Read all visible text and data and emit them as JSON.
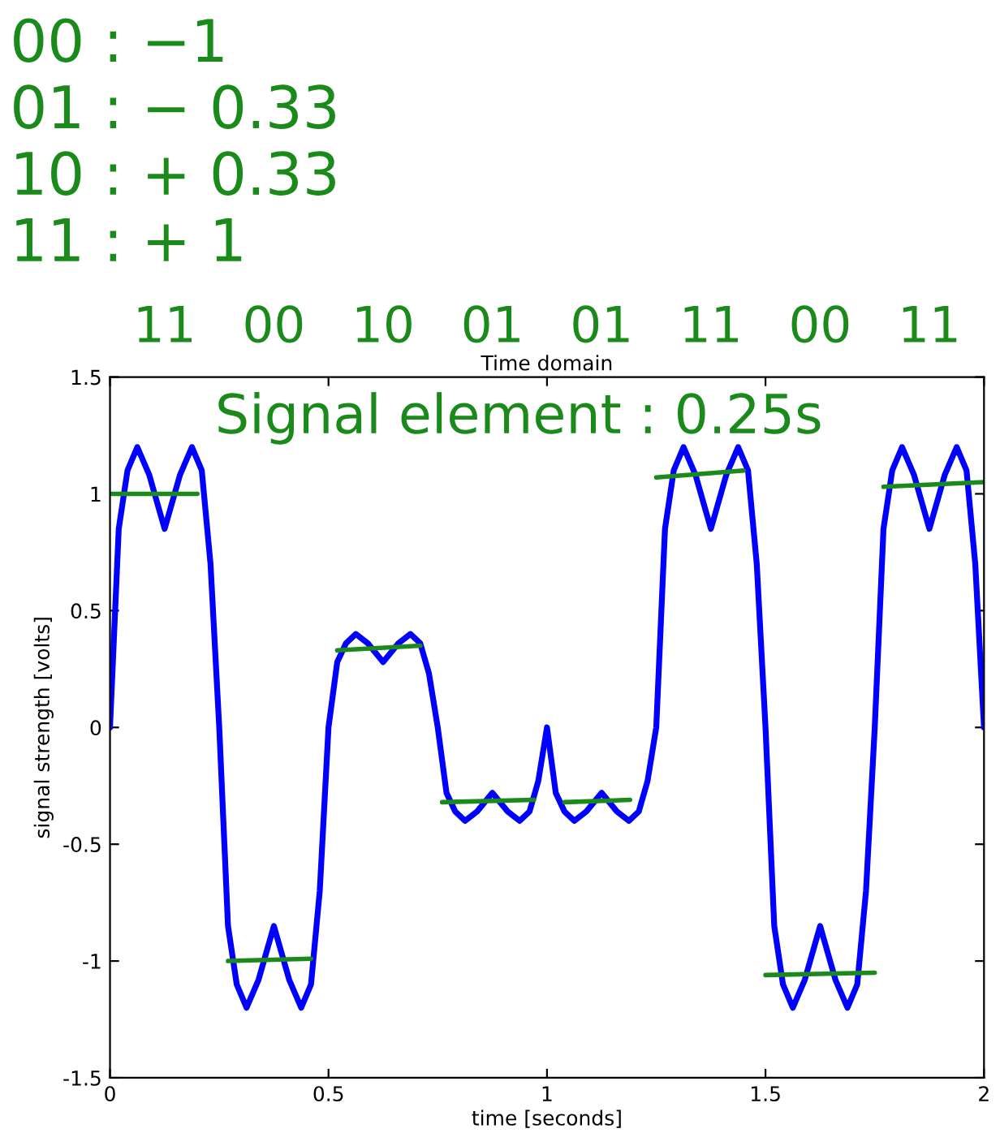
{
  "chart_data": {
    "type": "line",
    "title": "Time domain",
    "xlabel": "time [seconds]",
    "ylabel": "signal strength [volts]",
    "xlim": [
      0,
      2
    ],
    "ylim": [
      -1.5,
      1.5
    ],
    "xticks": [
      0,
      0.5,
      1,
      1.5,
      2
    ],
    "yticks": [
      -1.5,
      -1,
      -0.5,
      0,
      0.5,
      1,
      1.5
    ],
    "grid": false,
    "marker": "none",
    "line_style": "solid",
    "series": [
      {
        "color": "#0000ff",
        "x": [
          0,
          0.02,
          0.04,
          0.0625,
          0.09,
          0.125,
          0.16,
          0.1875,
          0.21,
          0.23,
          0.25,
          0.27,
          0.29,
          0.3125,
          0.34,
          0.375,
          0.41,
          0.4375,
          0.46,
          0.48,
          0.5,
          0.52,
          0.54,
          0.5625,
          0.59,
          0.625,
          0.66,
          0.6875,
          0.71,
          0.73,
          0.75,
          0.77,
          0.79,
          0.8125,
          0.84,
          0.875,
          0.91,
          0.9375,
          0.96,
          0.98,
          1.0,
          1.02,
          1.04,
          1.0625,
          1.09,
          1.125,
          1.16,
          1.1875,
          1.21,
          1.23,
          1.25,
          1.27,
          1.29,
          1.3125,
          1.34,
          1.375,
          1.41,
          1.4375,
          1.46,
          1.48,
          1.5,
          1.52,
          1.54,
          1.5625,
          1.59,
          1.625,
          1.66,
          1.6875,
          1.71,
          1.73,
          1.75,
          1.77,
          1.79,
          1.8125,
          1.84,
          1.875,
          1.91,
          1.9375,
          1.96,
          1.98,
          2.0
        ],
        "values": [
          0,
          0.85,
          1.1,
          1.2,
          1.08,
          0.85,
          1.08,
          1.2,
          1.1,
          0.7,
          0,
          -0.85,
          -1.1,
          -1.2,
          -1.08,
          -0.85,
          -1.08,
          -1.2,
          -1.1,
          -0.7,
          0,
          0.28,
          0.36,
          0.4,
          0.36,
          0.28,
          0.36,
          0.4,
          0.36,
          0.23,
          0,
          -0.28,
          -0.36,
          -0.4,
          -0.36,
          -0.28,
          -0.36,
          -0.4,
          -0.36,
          -0.23,
          0,
          -0.28,
          -0.36,
          -0.4,
          -0.36,
          -0.28,
          -0.36,
          -0.4,
          -0.36,
          -0.23,
          0,
          0.85,
          1.1,
          1.2,
          1.08,
          0.85,
          1.08,
          1.2,
          1.1,
          0.7,
          0,
          -0.85,
          -1.1,
          -1.2,
          -1.08,
          -0.85,
          -1.08,
          -1.2,
          -1.1,
          -0.7,
          0,
          0.85,
          1.1,
          1.2,
          1.08,
          0.85,
          1.08,
          1.2,
          1.1,
          0.7,
          0
        ]
      },
      {
        "color": "#1a8a1a",
        "x": [
          0,
          0.2
        ],
        "values": [
          1.0,
          1.0
        ]
      },
      {
        "color": "#1a8a1a",
        "x": [
          0.27,
          0.46
        ],
        "values": [
          -1.0,
          -0.99
        ]
      },
      {
        "color": "#1a8a1a",
        "x": [
          0.52,
          0.71
        ],
        "values": [
          0.33,
          0.35
        ]
      },
      {
        "color": "#1a8a1a",
        "x": [
          0.76,
          0.97
        ],
        "values": [
          -0.32,
          -0.31
        ]
      },
      {
        "color": "#1a8a1a",
        "x": [
          1.04,
          1.19
        ],
        "values": [
          -0.32,
          -0.31
        ]
      },
      {
        "color": "#1a8a1a",
        "x": [
          1.25,
          1.45
        ],
        "values": [
          1.07,
          1.1
        ]
      },
      {
        "color": "#1a8a1a",
        "x": [
          1.5,
          1.75
        ],
        "values": [
          -1.06,
          -1.05
        ]
      },
      {
        "color": "#1a8a1a",
        "x": [
          1.77,
          2.0
        ],
        "values": [
          1.03,
          1.05
        ]
      }
    ],
    "annotations": [
      "00 : −1",
      "01 : − 0.33",
      "10 : + 0.33",
      "11 : + 1",
      "Signal element : 0.25s",
      "11",
      "00",
      "10",
      "01",
      "01",
      "11",
      "00",
      "11"
    ]
  }
}
